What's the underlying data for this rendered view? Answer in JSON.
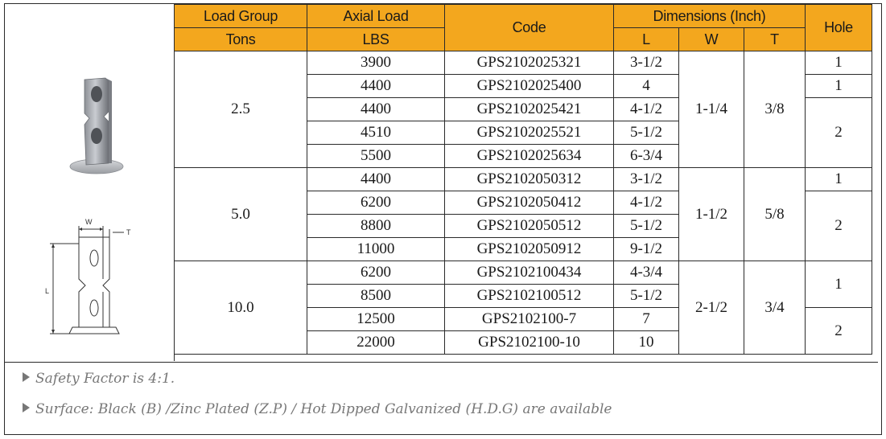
{
  "headers": {
    "load_group": "Load Group",
    "tons": "Tons",
    "axial_load": "Axial Load",
    "lbs": "LBS",
    "code": "Code",
    "dimensions": "Dimensions (Inch)",
    "l": "L",
    "w": "W",
    "t": "T",
    "hole": "Hole"
  },
  "groups": [
    {
      "tons": "2.5",
      "w": "1-1/4",
      "t": "3/8",
      "rows": [
        {
          "lbs": "3900",
          "code": "GPS2102025321",
          "l": "3-1/2"
        },
        {
          "lbs": "4400",
          "code": "GPS2102025400",
          "l": "4"
        },
        {
          "lbs": "4400",
          "code": "GPS2102025421",
          "l": "4-1/2"
        },
        {
          "lbs": "4510",
          "code": "GPS2102025521",
          "l": "5-1/2"
        },
        {
          "lbs": "5500",
          "code": "GPS2102025634",
          "l": "6-3/4"
        }
      ],
      "holes": [
        "1",
        "1",
        "2"
      ]
    },
    {
      "tons": "5.0",
      "w": "1-1/2",
      "t": "5/8",
      "rows": [
        {
          "lbs": "4400",
          "code": "GPS2102050312",
          "l": "3-1/2"
        },
        {
          "lbs": "6200",
          "code": "GPS2102050412",
          "l": "4-1/2"
        },
        {
          "lbs": "8800",
          "code": "GPS2102050512",
          "l": "5-1/2"
        },
        {
          "lbs": "11000",
          "code": "GPS2102050912",
          "l": "9-1/2"
        }
      ],
      "holes": [
        "1",
        "2"
      ]
    },
    {
      "tons": "10.0",
      "w": "2-1/2",
      "t": "3/4",
      "rows": [
        {
          "lbs": "6200",
          "code": "GPS2102100434",
          "l": "4-3/4"
        },
        {
          "lbs": "8500",
          "code": "GPS2102100512",
          "l": "5-1/2"
        },
        {
          "lbs": "12500",
          "code": "GPS2102100-7",
          "l": "7"
        },
        {
          "lbs": "22000",
          "code": "GPS2102100-10",
          "l": "10"
        }
      ],
      "holes": [
        "1",
        "2"
      ]
    }
  ],
  "drawing_labels": {
    "w": "W",
    "t": "T",
    "l": "L"
  },
  "notes": [
    "Safety Factor is 4:1.",
    "Surface: Black (B) /Zinc Plated (Z.P) / Hot Dipped Galvanized (H.D.G) are available"
  ],
  "colors": {
    "header_bg": "#f3a71e",
    "border": "#2a2a2a",
    "note_text": "#777777"
  }
}
